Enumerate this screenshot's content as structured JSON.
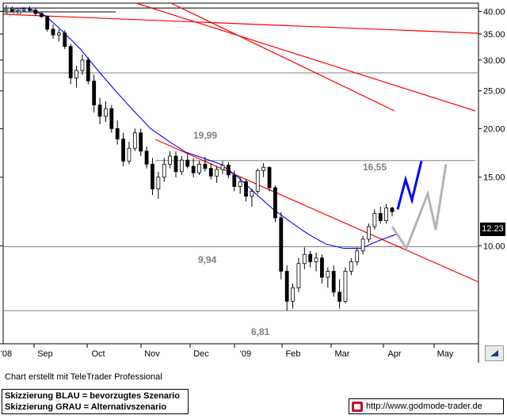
{
  "chart_data": {
    "type": "candlestick",
    "title": "",
    "xlabel": "",
    "ylabel": "",
    "y_scale": "log",
    "ylim": [
      5.6,
      42
    ],
    "y_ticks": [
      {
        "value": 40,
        "label": "40.00"
      },
      {
        "value": 35,
        "label": "35.00"
      },
      {
        "value": 30,
        "label": "30.00"
      },
      {
        "value": 25,
        "label": "25.00"
      },
      {
        "value": 20,
        "label": "20.00"
      },
      {
        "value": 15,
        "label": "15.00"
      },
      {
        "value": 10,
        "label": "10.00"
      }
    ],
    "x_ticks": [
      "'08",
      "Sep",
      "Oct",
      "Nov",
      "Dec",
      "'09",
      "Feb",
      "Mar",
      "Apr",
      "May"
    ],
    "grid": "horizontal",
    "last_price": "12.23",
    "horizontal_levels": [
      {
        "value": 40.8,
        "color": "#000000"
      },
      {
        "value": 27.8,
        "color": "#808080"
      },
      {
        "value": 16.55,
        "color": "#808080"
      },
      {
        "value": 9.94,
        "color": "#808080"
      },
      {
        "value": 6.81,
        "color": "#808080"
      }
    ],
    "annotations": [
      "9,73",
      "19,99",
      "16,55",
      "9,94",
      "6,81"
    ],
    "moving_average": {
      "color": "#0000ff",
      "values": [
        40.6,
        40.8,
        39.0,
        35.5,
        32.0,
        28.2,
        25.0,
        22.3,
        20.0,
        18.6,
        17.4,
        16.8,
        16.2,
        15.0,
        13.6,
        12.4,
        11.5,
        10.7,
        10.1,
        9.85,
        9.85,
        10.3,
        10.7
      ]
    },
    "price_candles": [
      [
        40.5,
        41.5,
        39.5,
        40.5
      ],
      [
        40.5,
        41.2,
        39.8,
        40.0
      ],
      [
        40.0,
        40.5,
        39.5,
        40.2
      ],
      [
        40.2,
        41.0,
        39.8,
        40.5
      ],
      [
        40.5,
        41.2,
        40.0,
        40.3
      ],
      [
        40.3,
        40.8,
        39.0,
        39.5
      ],
      [
        39.5,
        40.0,
        38.5,
        38.8
      ],
      [
        38.8,
        39.0,
        35.5,
        36.0
      ],
      [
        36.0,
        37.0,
        34.0,
        34.8
      ],
      [
        34.8,
        36.0,
        33.5,
        35.2
      ],
      [
        35.2,
        35.8,
        32.0,
        32.5
      ],
      [
        32.5,
        33.0,
        26.0,
        27.0
      ],
      [
        27.0,
        29.0,
        25.5,
        28.2
      ],
      [
        28.2,
        31.0,
        27.5,
        30.0
      ],
      [
        30.0,
        30.5,
        26.0,
        26.5
      ],
      [
        26.5,
        27.5,
        22.0,
        23.0
      ],
      [
        23.0,
        24.0,
        20.5,
        21.5
      ],
      [
        21.5,
        23.5,
        20.8,
        22.5
      ],
      [
        22.5,
        23.0,
        19.5,
        20.0
      ],
      [
        20.0,
        21.0,
        18.2,
        18.8
      ],
      [
        18.8,
        19.5,
        16.0,
        16.5
      ],
      [
        16.5,
        18.5,
        16.2,
        17.8
      ],
      [
        17.8,
        20.0,
        17.5,
        19.5
      ],
      [
        19.5,
        19.99,
        17.0,
        17.5
      ],
      [
        17.5,
        18.0,
        15.8,
        16.2
      ],
      [
        16.2,
        16.8,
        13.5,
        14.0
      ],
      [
        14.0,
        15.5,
        13.2,
        15.0
      ],
      [
        15.0,
        16.8,
        14.6,
        16.2
      ],
      [
        16.2,
        17.5,
        15.8,
        17.0
      ],
      [
        17.0,
        17.5,
        15.0,
        15.5
      ],
      [
        15.5,
        17.0,
        15.2,
        16.6
      ],
      [
        16.6,
        17.2,
        15.8,
        16.0
      ],
      [
        16.0,
        16.8,
        15.0,
        15.4
      ],
      [
        15.4,
        16.5,
        15.2,
        16.2
      ],
      [
        16.2,
        16.9,
        15.5,
        15.8
      ],
      [
        15.8,
        16.3,
        14.8,
        15.1
      ],
      [
        15.1,
        16.0,
        14.5,
        15.7
      ],
      [
        15.7,
        16.5,
        15.3,
        16.1
      ],
      [
        16.1,
        16.4,
        14.9,
        15.2
      ],
      [
        15.2,
        15.6,
        13.8,
        14.2
      ],
      [
        14.2,
        15.0,
        13.6,
        14.6
      ],
      [
        14.6,
        14.8,
        13.0,
        13.4
      ],
      [
        13.4,
        14.0,
        12.6,
        13.8
      ],
      [
        13.8,
        15.8,
        13.6,
        15.6
      ],
      [
        15.6,
        16.3,
        15.0,
        15.9
      ],
      [
        15.9,
        16.0,
        13.8,
        14.1
      ],
      [
        14.1,
        14.3,
        11.5,
        11.8
      ],
      [
        11.8,
        12.2,
        8.2,
        8.6
      ],
      [
        8.6,
        8.9,
        6.81,
        7.2
      ],
      [
        7.2,
        8.0,
        6.9,
        7.8
      ],
      [
        7.8,
        9.3,
        7.6,
        9.0
      ],
      [
        9.0,
        9.9,
        8.7,
        9.5
      ],
      [
        9.5,
        9.7,
        8.8,
        9.1
      ],
      [
        9.1,
        9.6,
        8.6,
        9.3
      ],
      [
        9.3,
        9.5,
        8.0,
        8.3
      ],
      [
        8.3,
        8.8,
        7.8,
        8.6
      ],
      [
        8.6,
        8.9,
        7.4,
        7.6
      ],
      [
        7.6,
        8.2,
        6.9,
        7.2
      ],
      [
        7.2,
        8.8,
        7.1,
        8.6
      ],
      [
        8.6,
        9.3,
        8.4,
        9.1
      ],
      [
        9.1,
        9.9,
        8.9,
        9.7
      ],
      [
        9.7,
        10.6,
        9.5,
        10.4
      ],
      [
        10.4,
        11.4,
        10.2,
        11.2
      ],
      [
        11.2,
        12.4,
        11.0,
        12.1
      ],
      [
        12.1,
        12.6,
        11.4,
        11.6
      ],
      [
        11.6,
        12.8,
        11.4,
        12.5
      ],
      [
        12.5,
        12.6,
        11.9,
        12.23
      ]
    ],
    "trendlines": [
      {
        "name": "",
        "color": "#ff0000"
      },
      {
        "name": "",
        "color": "#ff0000"
      },
      {
        "name": "",
        "color": "#ff0000"
      },
      {
        "name": "",
        "color": "#ff0000"
      }
    ],
    "scenarios": [
      {
        "legend": "Skizzierung BLAU = bevorzugtes Szenario",
        "color": "#0000ff",
        "values": [
          12.4,
          14.8,
          13.1,
          16.5
        ]
      },
      {
        "legend": "Skizzierung GRAU = Alternativszenario",
        "color": "#b4b4b4",
        "values": [
          11.2,
          9.85,
          13.6,
          11.0,
          16.2
        ]
      }
    ]
  },
  "footer": {
    "credit": "Chart erstellt mit TeleTrader Professional",
    "legend_blue": "Skizzierung BLAU = bevorzugtes Szenario",
    "legend_gray": "Skizzierung GRAU = Alternativszenario",
    "website": "http://www.godmode-trader.de"
  },
  "nav_icon": "triangle-nav-icon"
}
